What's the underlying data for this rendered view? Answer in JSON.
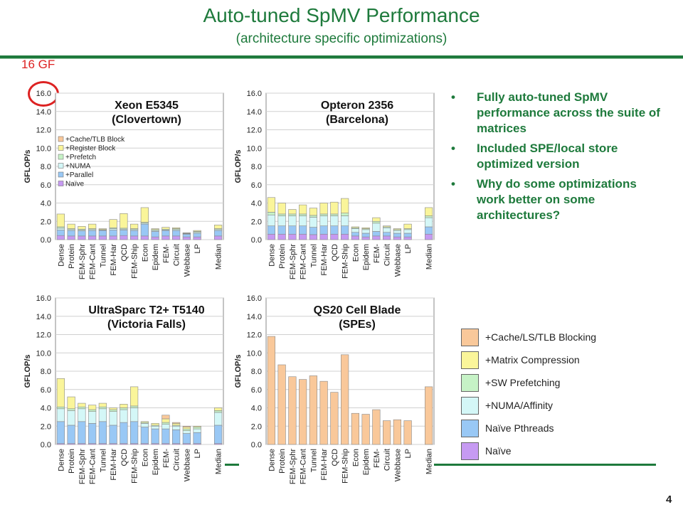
{
  "slide": {
    "title": "Auto-tuned SpMV Performance",
    "subtitle": "(architecture specific optimizations)",
    "annotation": "16 GF",
    "page_number": "4",
    "bullets": [
      "Fully auto-tuned SpMV performance across the suite of matrices",
      "Included SPE/local store optimized version",
      "Why do some optimizations work better on some architectures?"
    ]
  },
  "legend": [
    {
      "label": "+Cache/LS/TLB Blocking",
      "color": "#f9c89a"
    },
    {
      "label": "+Matrix Compression",
      "color": "#faf59a"
    },
    {
      "label": "+SW Prefetching",
      "color": "#c6f2c6"
    },
    {
      "label": "+NUMA/Affinity",
      "color": "#d4f7f7"
    },
    {
      "label": "Naïve Pthreads",
      "color": "#99c8f5"
    },
    {
      "label": "Naïve",
      "color": "#c69af2"
    }
  ],
  "chart_data": [
    {
      "type": "bar",
      "stacked": true,
      "title": "Xeon E5345",
      "subtitle": "(Clovertown)",
      "ylabel": "GFLOP/s",
      "ylim": [
        0,
        16
      ],
      "yticks": [
        "0.0",
        "2.0",
        "4.0",
        "6.0",
        "8.0",
        "10.0",
        "12.0",
        "14.0",
        "16.0"
      ],
      "categories": [
        "Dense",
        "Protein",
        "FEM-Sphr",
        "FEM-Cant",
        "Tunnel",
        "FEM-Har",
        "QCD",
        "FEM-Ship",
        "Econ",
        "Epidem",
        "FEM-",
        "Circuit",
        "Webbase",
        "LP",
        "",
        "Median"
      ],
      "inner_legend": [
        "+Cache/TLB Block",
        "+Register Block",
        "+Prefetch",
        "+NUMA",
        "+Parallel",
        "Naïve"
      ],
      "series": [
        {
          "name": "Naïve",
          "color": "#c69af2",
          "values": [
            0.45,
            0.4,
            0.4,
            0.4,
            0.4,
            0.4,
            0.45,
            0.4,
            0.4,
            0.3,
            0.4,
            0.4,
            0.3,
            0.3,
            0,
            0.4
          ]
        },
        {
          "name": "+Parallel",
          "color": "#99c8f5",
          "values": [
            0.6,
            0.6,
            0.55,
            0.6,
            0.6,
            0.65,
            0.6,
            0.6,
            1.3,
            0.6,
            0.6,
            0.6,
            0.3,
            0.4,
            0,
            0.6
          ]
        },
        {
          "name": "+NUMA",
          "color": "#d4f7f7",
          "values": [
            0.2,
            0.1,
            0.1,
            0.1,
            0.05,
            0.15,
            0.1,
            0.1,
            0.1,
            0.1,
            0.05,
            0.1,
            0.05,
            0.1,
            0,
            0.1
          ]
        },
        {
          "name": "+Prefetch",
          "color": "#c6f2c6",
          "values": [
            0.15,
            0.1,
            0.1,
            0.1,
            0.05,
            0.1,
            0.1,
            0.1,
            0.1,
            0.1,
            0.1,
            0.1,
            0.05,
            0.1,
            0,
            0.1
          ]
        },
        {
          "name": "+Register Block",
          "color": "#faf59a",
          "values": [
            1.4,
            0.5,
            0.3,
            0.5,
            0.1,
            0.9,
            1.6,
            0.5,
            1.6,
            0.1,
            0.2,
            0.1,
            0.05,
            0.1,
            0,
            0.4
          ]
        },
        {
          "name": "+Cache/TLB Block",
          "color": "#f9c89a",
          "values": [
            0,
            0,
            0,
            0,
            0,
            0,
            0,
            0,
            0,
            0,
            0,
            0,
            0,
            0,
            0,
            0
          ]
        }
      ]
    },
    {
      "type": "bar",
      "stacked": true,
      "title": "Opteron 2356",
      "subtitle": "(Barcelona)",
      "ylabel": "GFLOP/s",
      "ylim": [
        0,
        16
      ],
      "yticks": [
        "0.0",
        "2.0",
        "4.0",
        "6.0",
        "8.0",
        "10.0",
        "12.0",
        "14.0",
        "16.0"
      ],
      "categories": [
        "Dense",
        "Protein",
        "FEM-Sphr",
        "FEM-Cant",
        "Tunnel",
        "FEM-Har",
        "QCD",
        "FEM-Ship",
        "Econ",
        "Epidem",
        "FEM-",
        "Circuit",
        "Webbase",
        "LP",
        "",
        "Median"
      ],
      "series": [
        {
          "name": "Naïve",
          "color": "#c69af2",
          "values": [
            0.6,
            0.6,
            0.6,
            0.6,
            0.55,
            0.6,
            0.6,
            0.6,
            0.4,
            0.3,
            0.4,
            0.4,
            0.3,
            0.3,
            0,
            0.6
          ]
        },
        {
          "name": "Naïve Pthreads",
          "color": "#99c8f5",
          "values": [
            0.9,
            0.9,
            0.9,
            0.9,
            0.8,
            0.9,
            0.9,
            0.9,
            0.4,
            0.4,
            0.5,
            0.4,
            0.4,
            0.4,
            0,
            0.8
          ]
        },
        {
          "name": "+NUMA/Affinity",
          "color": "#d4f7f7",
          "values": [
            1.2,
            1.1,
            1.1,
            1.1,
            1.1,
            1.1,
            1.1,
            1.1,
            0.4,
            0.4,
            0.9,
            0.5,
            0.3,
            0.4,
            0,
            1.0
          ]
        },
        {
          "name": "+SW Prefetching",
          "color": "#c6f2c6",
          "values": [
            0.3,
            0.2,
            0.2,
            0.2,
            0.2,
            0.2,
            0.2,
            0.3,
            0.1,
            0.1,
            0.2,
            0.1,
            0.1,
            0.1,
            0,
            0.2
          ]
        },
        {
          "name": "+Matrix Compression",
          "color": "#faf59a",
          "values": [
            1.6,
            1.2,
            0.5,
            1.0,
            0.8,
            1.2,
            1.3,
            1.6,
            0.1,
            0.1,
            0.4,
            0.1,
            0.1,
            0.5,
            0,
            0.9
          ]
        },
        {
          "name": "+Cache/LS/TLB Blocking",
          "color": "#f9c89a",
          "values": [
            0,
            0,
            0,
            0,
            0,
            0,
            0,
            0,
            0,
            0,
            0,
            0,
            0,
            0,
            0,
            0
          ]
        }
      ]
    },
    {
      "type": "bar",
      "stacked": true,
      "title": "UltraSparc T2+ T5140",
      "subtitle": "(Victoria Falls)",
      "ylabel": "GFLOP/s",
      "ylim": [
        0,
        16
      ],
      "yticks": [
        "0.0",
        "2.0",
        "4.0",
        "6.0",
        "8.0",
        "10.0",
        "12.0",
        "14.0",
        "16.0"
      ],
      "categories": [
        "Dense",
        "Protein",
        "FEM-Sphr",
        "FEM-Cant",
        "Tunnel",
        "FEM-Har",
        "QCD",
        "FEM-Ship",
        "Econ",
        "Epidem",
        "FEM-",
        "Circuit",
        "Webbase",
        "LP",
        "",
        "Median"
      ],
      "series": [
        {
          "name": "Naïve",
          "color": "#c69af2",
          "values": [
            0.1,
            0.1,
            0.1,
            0.1,
            0.1,
            0.1,
            0.1,
            0.1,
            0.1,
            0.1,
            0.1,
            0.1,
            0.1,
            0.1,
            0,
            0.1
          ]
        },
        {
          "name": "Naïve Pthreads",
          "color": "#99c8f5",
          "values": [
            2.4,
            2.0,
            2.4,
            2.2,
            2.4,
            2.0,
            2.3,
            2.4,
            1.8,
            1.6,
            1.6,
            1.5,
            1.1,
            1.2,
            0,
            2.0
          ]
        },
        {
          "name": "+NUMA/Affinity",
          "color": "#d4f7f7",
          "values": [
            1.4,
            1.6,
            1.4,
            1.3,
            1.4,
            1.5,
            1.4,
            1.5,
            0.4,
            0.3,
            0.5,
            0.4,
            0.3,
            0.4,
            0,
            1.4
          ]
        },
        {
          "name": "+SW Prefetching",
          "color": "#c6f2c6",
          "values": [
            0.2,
            0.2,
            0.2,
            0.2,
            0.2,
            0.2,
            0.2,
            0.2,
            0.1,
            0.1,
            0.2,
            0.1,
            0.2,
            0.2,
            0,
            0.2
          ]
        },
        {
          "name": "+Matrix Compression",
          "color": "#faf59a",
          "values": [
            3.1,
            1.3,
            0.4,
            0.5,
            0.4,
            0.2,
            0.4,
            2.1,
            0.1,
            0.2,
            0.4,
            0.2,
            0.2,
            0.1,
            0,
            0.3
          ]
        },
        {
          "name": "+Cache/LS/TLB Blocking",
          "color": "#f9c89a",
          "values": [
            0,
            0,
            0,
            0,
            0,
            0,
            0,
            0,
            0,
            0,
            0.4,
            0.1,
            0.1,
            0,
            0,
            0
          ]
        }
      ]
    },
    {
      "type": "bar",
      "stacked": true,
      "title": "QS20 Cell Blade",
      "subtitle": "(SPEs)",
      "ylabel": "GFLOP/s",
      "ylim": [
        0,
        16
      ],
      "yticks": [
        "0.0",
        "2.0",
        "4.0",
        "6.0",
        "8.0",
        "10.0",
        "12.0",
        "14.0",
        "16.0"
      ],
      "categories": [
        "Dense",
        "Protein",
        "FEM-Sphr",
        "FEM-Cant",
        "Tunnel",
        "FEM-Har",
        "QCD",
        "FEM-Ship",
        "Econ",
        "Epidem",
        "FEM-",
        "Circuit",
        "Webbase",
        "LP",
        "",
        "Median"
      ],
      "series": [
        {
          "name": "+Cache/LS/TLB Blocking",
          "color": "#f9c89a",
          "values": [
            11.8,
            8.7,
            7.4,
            7.1,
            7.5,
            6.9,
            5.7,
            9.8,
            3.4,
            3.3,
            3.8,
            2.6,
            2.7,
            2.6,
            0,
            6.3
          ]
        }
      ]
    }
  ]
}
